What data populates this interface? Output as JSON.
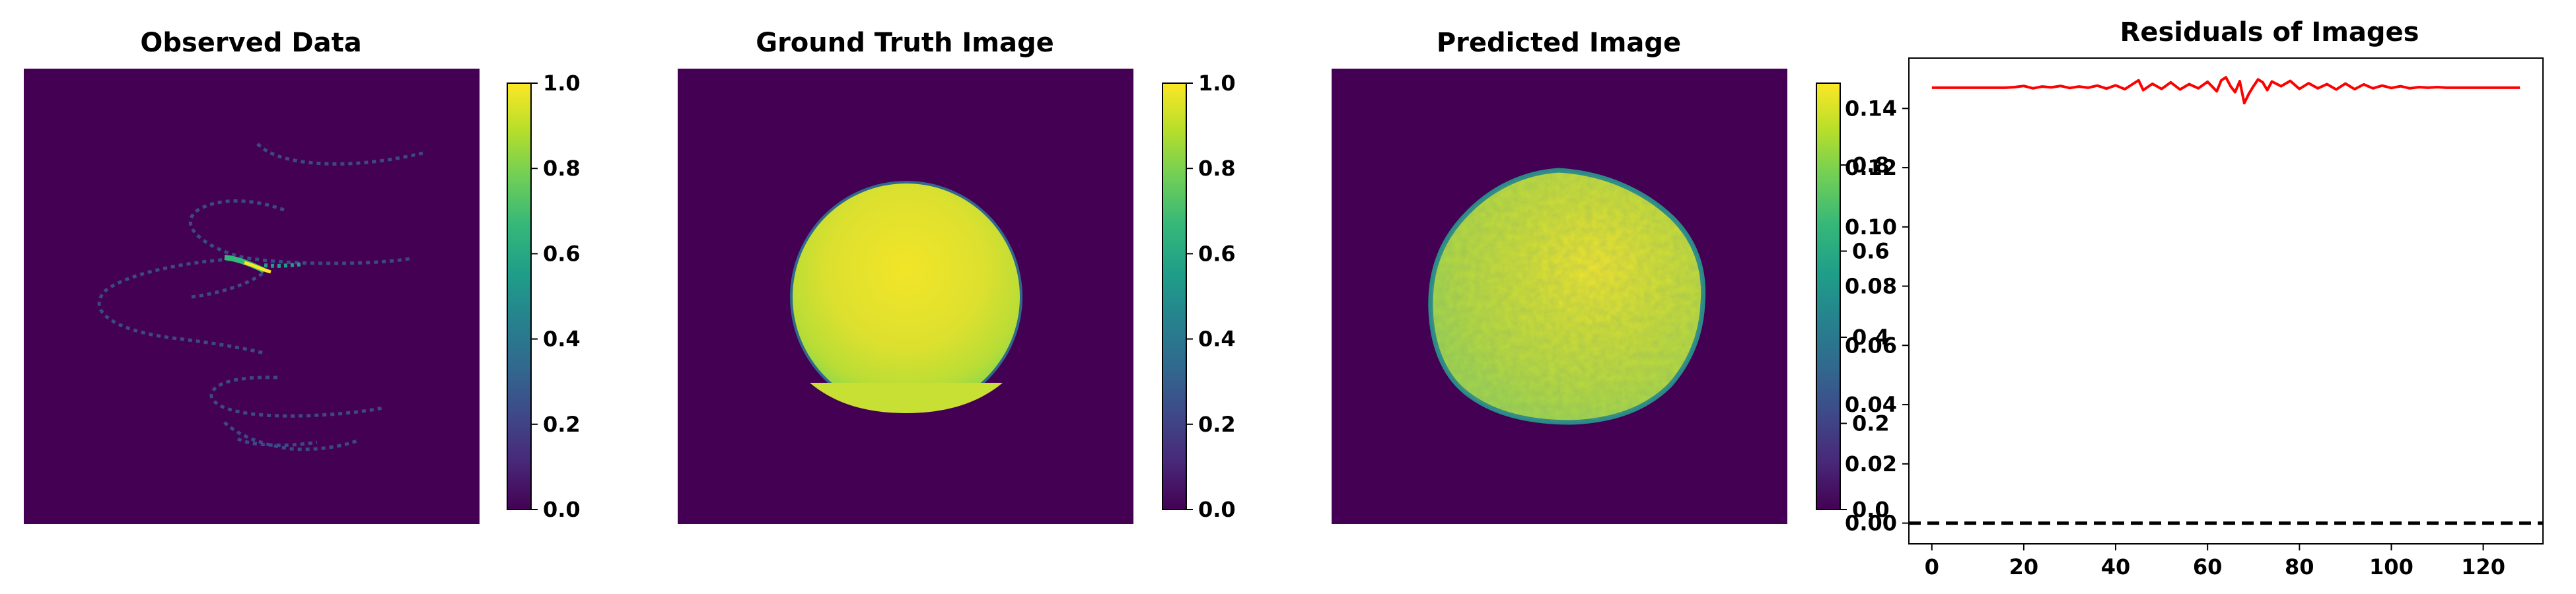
{
  "panels": {
    "observed": {
      "title": "Observed Data"
    },
    "ground_truth": {
      "title": "Ground Truth Image"
    },
    "predicted": {
      "title": "Predicted Image"
    },
    "residuals": {
      "title": "Residuals of Images"
    }
  },
  "colorbars": {
    "observed": {
      "ticks": [
        "0.0",
        "0.2",
        "0.4",
        "0.6",
        "0.8",
        "1.0"
      ],
      "range": [
        0,
        1
      ]
    },
    "ground_truth": {
      "ticks": [
        "0.0",
        "0.2",
        "0.4",
        "0.6",
        "0.8",
        "1.0"
      ],
      "range": [
        0,
        1
      ]
    },
    "predicted": {
      "ticks": [
        "0.0",
        "0.2",
        "0.4",
        "0.6",
        "0.8"
      ],
      "range": [
        0,
        0.99
      ]
    }
  },
  "colors": {
    "viridis": [
      "#440154",
      "#482878",
      "#3e4989",
      "#31688e",
      "#26828e",
      "#1f9e89",
      "#35b779",
      "#6ece58",
      "#b5de2b",
      "#fde725"
    ],
    "residual_line": "#ff0000",
    "zero_line": "#000000"
  },
  "chart_data": [
    {
      "type": "heatmap",
      "title": "Observed Data",
      "colormap": "viridis",
      "value_range": [
        0,
        1
      ],
      "grid": false,
      "content": "sparse helical scatter traces on a near-zero background, brightest values (about 1.0) near the upper middle"
    },
    {
      "type": "heatmap",
      "title": "Ground Truth Image",
      "colormap": "viridis",
      "value_range": [
        0,
        1
      ],
      "grid": false,
      "content": "uniform disc with values near 0.9-1.0 on a zero background"
    },
    {
      "type": "heatmap",
      "title": "Predicted Image",
      "colormap": "viridis",
      "value_range": [
        0,
        0.99
      ],
      "grid": false,
      "content": "noisy disc with values about 0.85-0.99 on a zero background"
    },
    {
      "type": "line",
      "title": "Residuals of Images",
      "xlabel": "",
      "ylabel": "",
      "xlim": [
        -5,
        133
      ],
      "ylim": [
        -0.007,
        0.157
      ],
      "xticks": [
        "0",
        "20",
        "40",
        "60",
        "80",
        "100",
        "120"
      ],
      "yticks": [
        "0.00",
        "0.02",
        "0.04",
        "0.06",
        "0.08",
        "0.10",
        "0.12",
        "0.14"
      ],
      "grid": false,
      "series": [
        {
          "color": "#ff0000",
          "x": [
            0,
            4,
            8,
            12,
            16,
            18,
            20,
            22,
            24,
            26,
            28,
            30,
            32,
            34,
            36,
            38,
            40,
            42,
            44,
            45,
            46,
            48,
            50,
            52,
            54,
            56,
            58,
            60,
            62,
            63,
            64,
            65,
            66,
            67,
            68,
            69,
            70,
            71,
            72,
            73,
            74,
            76,
            78,
            80,
            82,
            84,
            86,
            88,
            90,
            92,
            94,
            96,
            98,
            100,
            102,
            104,
            106,
            108,
            110,
            112,
            116,
            120,
            124,
            128
          ],
          "y": [
            0.147,
            0.147,
            0.147,
            0.147,
            0.147,
            0.1472,
            0.1476,
            0.1468,
            0.1474,
            0.1471,
            0.1476,
            0.1469,
            0.1474,
            0.147,
            0.1477,
            0.1467,
            0.1478,
            0.1465,
            0.1485,
            0.1495,
            0.1462,
            0.1483,
            0.1466,
            0.1488,
            0.1464,
            0.1482,
            0.1468,
            0.149,
            0.1458,
            0.1495,
            0.1505,
            0.1475,
            0.1455,
            0.1492,
            0.1418,
            0.145,
            0.1475,
            0.1498,
            0.1488,
            0.1462,
            0.1491,
            0.1475,
            0.1493,
            0.1466,
            0.1485,
            0.1468,
            0.1482,
            0.1464,
            0.1484,
            0.1465,
            0.1481,
            0.1468,
            0.1477,
            0.1469,
            0.1475,
            0.1468,
            0.1472,
            0.147,
            0.1472,
            0.147,
            0.147,
            0.147,
            0.147,
            0.147
          ]
        },
        {
          "color": "#000000",
          "style": "dashed",
          "y_constant": 0
        }
      ]
    }
  ]
}
